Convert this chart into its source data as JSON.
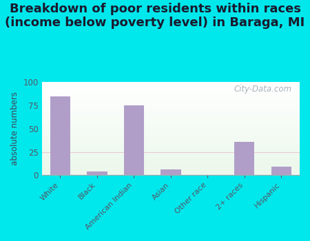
{
  "title": "Breakdown of poor residents within races\n(income below poverty level) in Baraga, MI",
  "categories": [
    "White",
    "Black",
    "American Indian",
    "Asian",
    "Other race",
    "2+ races",
    "Hispanic"
  ],
  "values": [
    85,
    4,
    75,
    6,
    0,
    36,
    9
  ],
  "bar_color": "#b09ec8",
  "ylabel": "absolute numbers",
  "ylim": [
    0,
    100
  ],
  "yticks": [
    0,
    25,
    50,
    75,
    100
  ],
  "outer_background": "#00e8ec",
  "title_fontsize": 13,
  "title_fontweight": "bold",
  "title_color": "#1a1a2e",
  "watermark": "City-Data.com",
  "watermark_color": "#a0aab8",
  "tick_color": "#555566",
  "ylabel_color": "#444455"
}
